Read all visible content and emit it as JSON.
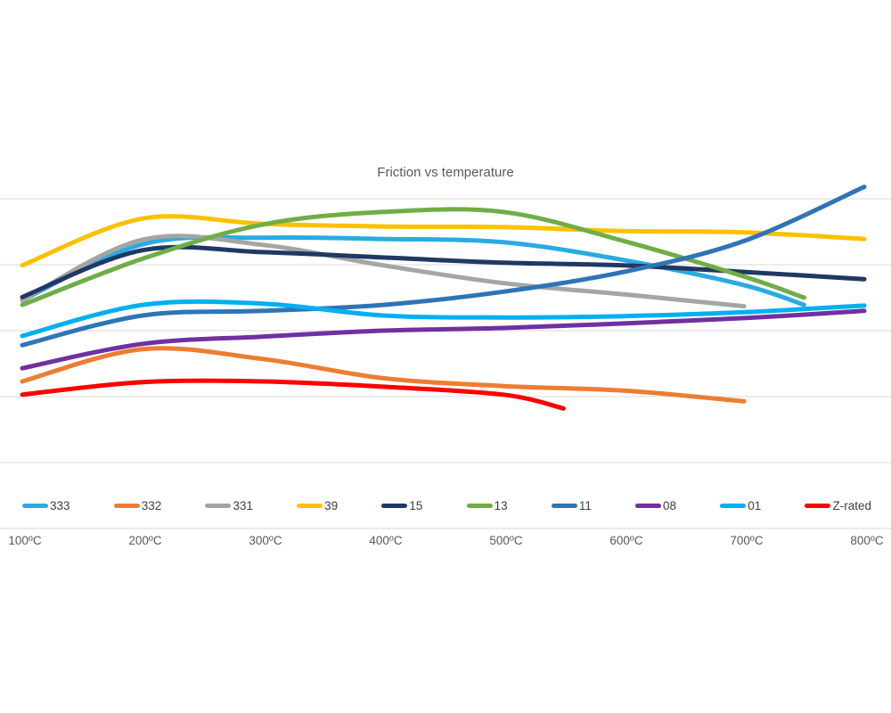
{
  "title": "Friction vs temperature",
  "axis": {
    "x_tick_labels": [
      "100ºC",
      "200ºC",
      "300ºC",
      "400ºC",
      "500ºC",
      "600ºC",
      "700ºC",
      "800ºC"
    ],
    "x_tick_temps": [
      100,
      200,
      300,
      400,
      500,
      600,
      700,
      800
    ]
  },
  "style_colors": {
    "gridline": "#d9d9d9",
    "title_text": "#595959",
    "axis_text": "#595959",
    "legend_text": "#404040"
  },
  "chart_data": {
    "type": "line",
    "title": "Friction vs temperature",
    "xlabel": "",
    "ylabel": "",
    "x_unit": "ºC",
    "x_ticks": [
      "100ºC",
      "200ºC",
      "300ºC",
      "400ºC",
      "500ºC",
      "600ºC",
      "700ºC",
      "800ºC"
    ],
    "y_axis_note": "no y-axis labels shown; values in gridline units, 0 = bottom gridline",
    "ylim": [
      0,
      5.3
    ],
    "gridlines_y": [
      0,
      1,
      2,
      3,
      4,
      5
    ],
    "grid": "horizontal-only",
    "legend_position": "bottom",
    "smooth_lines": true,
    "series": [
      {
        "name": "333",
        "color": "#29ABE2",
        "points": [
          [
            100,
            3.46
          ],
          [
            200,
            4.31
          ],
          [
            300,
            4.41
          ],
          [
            400,
            4.39
          ],
          [
            500,
            4.34
          ],
          [
            600,
            4.07
          ],
          [
            700,
            3.69
          ],
          [
            750,
            3.39
          ]
        ]
      },
      {
        "name": "332",
        "color": "#ED7D31",
        "points": [
          [
            100,
            2.23
          ],
          [
            200,
            2.72
          ],
          [
            300,
            2.57
          ],
          [
            400,
            2.28
          ],
          [
            500,
            2.16
          ],
          [
            600,
            2.09
          ],
          [
            700,
            1.93
          ]
        ]
      },
      {
        "name": "331",
        "color": "#A5A5A5",
        "points": [
          [
            100,
            3.46
          ],
          [
            200,
            4.38
          ],
          [
            300,
            4.3
          ],
          [
            400,
            3.99
          ],
          [
            500,
            3.72
          ],
          [
            600,
            3.55
          ],
          [
            700,
            3.37
          ]
        ]
      },
      {
        "name": "39",
        "color": "#FFC000",
        "points": [
          [
            100,
            3.99
          ],
          [
            200,
            4.7
          ],
          [
            300,
            4.62
          ],
          [
            400,
            4.58
          ],
          [
            500,
            4.57
          ],
          [
            600,
            4.51
          ],
          [
            700,
            4.49
          ],
          [
            800,
            4.39
          ]
        ]
      },
      {
        "name": "15",
        "color": "#1F3864",
        "points": [
          [
            100,
            3.51
          ],
          [
            200,
            4.22
          ],
          [
            300,
            4.19
          ],
          [
            400,
            4.11
          ],
          [
            500,
            4.03
          ],
          [
            600,
            3.99
          ],
          [
            700,
            3.89
          ],
          [
            800,
            3.78
          ]
        ]
      },
      {
        "name": "13",
        "color": "#70AD47",
        "points": [
          [
            100,
            3.39
          ],
          [
            200,
            4.09
          ],
          [
            300,
            4.61
          ],
          [
            400,
            4.8
          ],
          [
            500,
            4.8
          ],
          [
            600,
            4.36
          ],
          [
            700,
            3.82
          ],
          [
            750,
            3.5
          ]
        ]
      },
      {
        "name": "11",
        "color": "#2E75B6",
        "points": [
          [
            100,
            2.78
          ],
          [
            200,
            3.23
          ],
          [
            300,
            3.3
          ],
          [
            400,
            3.39
          ],
          [
            500,
            3.59
          ],
          [
            600,
            3.89
          ],
          [
            700,
            4.36
          ],
          [
            800,
            5.18
          ]
        ]
      },
      {
        "name": "08",
        "color": "#7030A0",
        "points": [
          [
            100,
            2.43
          ],
          [
            200,
            2.8
          ],
          [
            300,
            2.91
          ],
          [
            400,
            3.0
          ],
          [
            500,
            3.04
          ],
          [
            600,
            3.11
          ],
          [
            700,
            3.19
          ],
          [
            800,
            3.3
          ]
        ]
      },
      {
        "name": "01",
        "color": "#00B0F0",
        "points": [
          [
            100,
            2.92
          ],
          [
            200,
            3.39
          ],
          [
            300,
            3.41
          ],
          [
            400,
            3.23
          ],
          [
            500,
            3.2
          ],
          [
            600,
            3.22
          ],
          [
            700,
            3.28
          ],
          [
            800,
            3.38
          ]
        ]
      },
      {
        "name": "Z-rated",
        "color": "#FF0000",
        "points": [
          [
            100,
            2.03
          ],
          [
            200,
            2.22
          ],
          [
            300,
            2.23
          ],
          [
            400,
            2.15
          ],
          [
            500,
            2.03
          ],
          [
            550,
            1.82
          ]
        ]
      }
    ]
  }
}
